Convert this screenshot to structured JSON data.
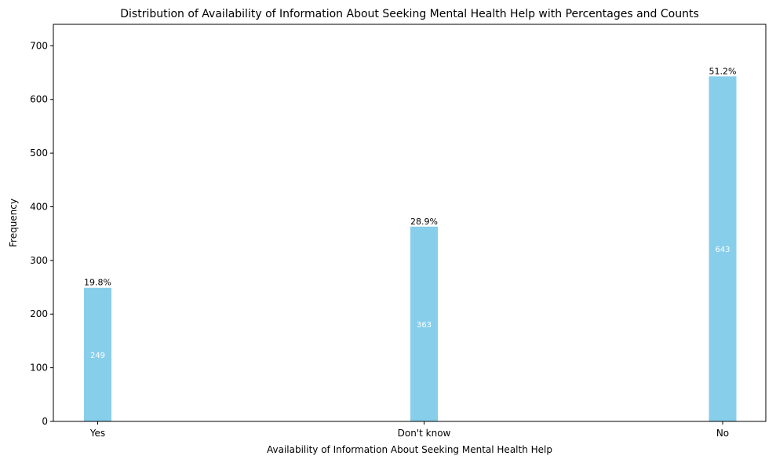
{
  "chart_data": {
    "type": "bar",
    "title": "Distribution of Availability of Information About Seeking Mental Health Help with Percentages and Counts",
    "xlabel": "Availability of Information About Seeking Mental Health Help",
    "ylabel": "Frequency",
    "categories": [
      "Yes",
      "Don't know",
      "No"
    ],
    "values": [
      249,
      363,
      643
    ],
    "percent_labels": [
      "19.8%",
      "28.9%",
      "51.2%"
    ],
    "count_labels": [
      "249",
      "363",
      "643"
    ],
    "ylim": [
      0,
      740
    ],
    "yticks": [
      0,
      100,
      200,
      300,
      400,
      500,
      600,
      700
    ],
    "ytick_labels": [
      "0",
      "100",
      "200",
      "300",
      "400",
      "500",
      "600",
      "700"
    ],
    "bar_color": "#87ceeb",
    "grid": false,
    "legend": "none"
  }
}
